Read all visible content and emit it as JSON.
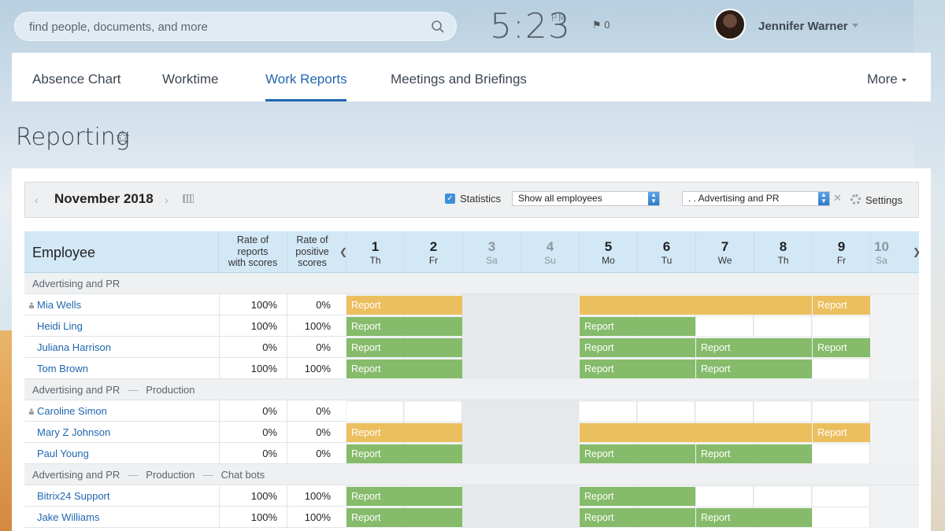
{
  "search": {
    "placeholder": "find people, documents, and more"
  },
  "clock": {
    "time": "5:23",
    "ampm": "PM"
  },
  "notifications": {
    "count": "0"
  },
  "user": {
    "name": "Jennifer Warner"
  },
  "tabs": [
    {
      "label": "Absence Chart",
      "active": false
    },
    {
      "label": "Worktime",
      "active": false
    },
    {
      "label": "Work Reports",
      "active": true
    },
    {
      "label": "Meetings and Briefings",
      "active": false
    }
  ],
  "more_label": "More",
  "page_title": "Reporting",
  "toolbar": {
    "month": "November 2018",
    "statistics_label": "Statistics",
    "statistics_checked": true,
    "employees_select": "Show all employees",
    "department_select": ". . Advertising and PR",
    "settings_label": "Settings"
  },
  "grid": {
    "employee_header": "Employee",
    "rate_header_1": [
      "Rate of",
      "reports",
      "with scores"
    ],
    "rate_header_2": [
      "Rate of",
      "positive",
      "scores"
    ],
    "days": [
      {
        "num": "1",
        "dow": "Th",
        "weekend": false
      },
      {
        "num": "2",
        "dow": "Fr",
        "weekend": false
      },
      {
        "num": "3",
        "dow": "Sa",
        "weekend": true
      },
      {
        "num": "4",
        "dow": "Su",
        "weekend": true
      },
      {
        "num": "5",
        "dow": "Mo",
        "weekend": false
      },
      {
        "num": "6",
        "dow": "Tu",
        "weekend": false
      },
      {
        "num": "7",
        "dow": "We",
        "weekend": false
      },
      {
        "num": "8",
        "dow": "Th",
        "weekend": false
      },
      {
        "num": "9",
        "dow": "Fr",
        "weekend": false
      },
      {
        "num": "10",
        "dow": "Sa",
        "weekend": true
      }
    ],
    "report_label": "Report",
    "rows": [
      {
        "type": "group",
        "path": [
          "Advertising and PR"
        ]
      },
      {
        "type": "emp",
        "name": "Mia Wells",
        "head": true,
        "r1": "100%",
        "r2": "0%",
        "bars": [
          {
            "from": 0,
            "to": 2,
            "color": "y",
            "label": true
          },
          {
            "from": 4,
            "to": 8,
            "color": "y",
            "label": false
          },
          {
            "from": 8,
            "to": 9,
            "color": "y",
            "label": true
          }
        ]
      },
      {
        "type": "emp",
        "name": "Heidi Ling",
        "head": false,
        "r1": "100%",
        "r2": "100%",
        "bars": [
          {
            "from": 0,
            "to": 2,
            "color": "g",
            "label": true
          },
          {
            "from": 4,
            "to": 6,
            "color": "g",
            "label": true
          }
        ]
      },
      {
        "type": "emp",
        "name": "Juliana Harrison",
        "head": false,
        "r1": "0%",
        "r2": "0%",
        "bars": [
          {
            "from": 0,
            "to": 2,
            "color": "g",
            "label": true
          },
          {
            "from": 4,
            "to": 6,
            "color": "g",
            "label": true
          },
          {
            "from": 6,
            "to": 8,
            "color": "g",
            "label": true
          },
          {
            "from": 8,
            "to": 9,
            "color": "g",
            "label": true
          }
        ]
      },
      {
        "type": "emp",
        "name": "Tom Brown",
        "head": false,
        "r1": "100%",
        "r2": "100%",
        "bars": [
          {
            "from": 0,
            "to": 2,
            "color": "g",
            "label": true
          },
          {
            "from": 4,
            "to": 6,
            "color": "g",
            "label": true
          },
          {
            "from": 6,
            "to": 8,
            "color": "g",
            "label": true
          }
        ]
      },
      {
        "type": "group",
        "path": [
          "Advertising and PR",
          "Production"
        ]
      },
      {
        "type": "emp",
        "name": "Caroline Simon",
        "head": true,
        "r1": "0%",
        "r2": "0%",
        "bars": []
      },
      {
        "type": "emp",
        "name": "Mary Z Johnson",
        "head": false,
        "r1": "0%",
        "r2": "0%",
        "bars": [
          {
            "from": 0,
            "to": 2,
            "color": "y",
            "label": true
          },
          {
            "from": 4,
            "to": 8,
            "color": "y",
            "label": false
          },
          {
            "from": 8,
            "to": 9,
            "color": "y",
            "label": true
          }
        ]
      },
      {
        "type": "emp",
        "name": "Paul Young",
        "head": false,
        "r1": "0%",
        "r2": "0%",
        "bars": [
          {
            "from": 0,
            "to": 2,
            "color": "g",
            "label": true
          },
          {
            "from": 4,
            "to": 6,
            "color": "g",
            "label": true
          },
          {
            "from": 6,
            "to": 8,
            "color": "g",
            "label": true
          }
        ]
      },
      {
        "type": "group",
        "path": [
          "Advertising and PR",
          "Production",
          "Chat bots"
        ]
      },
      {
        "type": "emp",
        "name": "Bitrix24 Support",
        "head": false,
        "r1": "100%",
        "r2": "100%",
        "bars": [
          {
            "from": 0,
            "to": 2,
            "color": "g",
            "label": true
          },
          {
            "from": 4,
            "to": 6,
            "color": "g",
            "label": true
          }
        ]
      },
      {
        "type": "emp",
        "name": "Jake Williams",
        "head": false,
        "r1": "100%",
        "r2": "100%",
        "bars": [
          {
            "from": 0,
            "to": 2,
            "color": "g",
            "label": true
          },
          {
            "from": 4,
            "to": 6,
            "color": "g",
            "label": true
          },
          {
            "from": 6,
            "to": 8,
            "color": "g",
            "label": true
          }
        ]
      }
    ]
  },
  "colors": {
    "accent": "#2067b0",
    "report_green": "#85bb6a",
    "report_yellow": "#ecbf5e"
  }
}
